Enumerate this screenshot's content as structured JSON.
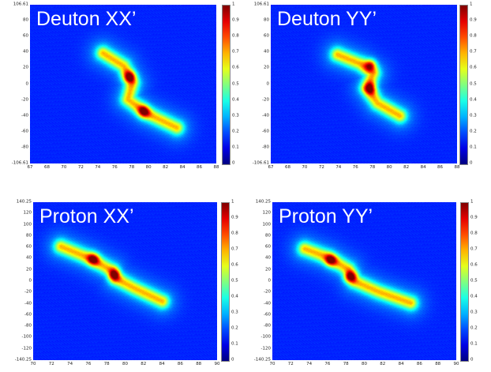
{
  "chart_data": [
    {
      "type": "heatmap",
      "title": "Deuton XX’",
      "x_ticks": [
        "67",
        "68",
        "70",
        "72",
        "74",
        "76",
        "78",
        "80",
        "82",
        "84",
        "86",
        "88"
      ],
      "y_ticks": [
        "106.61",
        "80",
        "60",
        "40",
        "20",
        "0",
        "-20",
        "-40",
        "-60",
        "-80",
        "-106.61"
      ],
      "colorbar_ticks": [
        "1",
        "0.9",
        "0.8",
        "0.7",
        "0.6",
        "0.5",
        "0.4",
        "0.3",
        "0.2",
        "0.1",
        "0"
      ],
      "xlim": [
        67,
        88
      ],
      "ylim": [
        -106.61,
        106.61
      ],
      "zlim": [
        0,
        1
      ],
      "colormap": "jet",
      "ridge": [
        [
          75.2,
          42
        ],
        [
          77.5,
          25
        ],
        [
          78.5,
          2
        ],
        [
          78.0,
          -20
        ],
        [
          80.0,
          -38
        ],
        [
          83.5,
          -58
        ]
      ],
      "core": [
        [
          78.2,
          10
        ],
        [
          79.8,
          -36
        ]
      ]
    },
    {
      "type": "heatmap",
      "title": "Deuton YY’",
      "x_ticks": [
        "67",
        "68",
        "70",
        "72",
        "74",
        "76",
        "78",
        "80",
        "82",
        "84",
        "86",
        "88"
      ],
      "y_ticks": [
        "106.61",
        "80",
        "60",
        "40",
        "20",
        "0",
        "-20",
        "-40",
        "-60",
        "-80",
        "-106.61"
      ],
      "colorbar_ticks": [
        "1",
        "0.9",
        "0.8",
        "0.7",
        "0.6",
        "0.5",
        "0.4",
        "0.3",
        "0.2",
        "0.1",
        "0"
      ],
      "xlim": [
        67,
        88
      ],
      "ylim": [
        -106.61,
        106.61
      ],
      "zlim": [
        0,
        1
      ],
      "colormap": "jet",
      "ridge": [
        [
          74.5,
          40
        ],
        [
          77.0,
          28
        ],
        [
          78.5,
          15
        ],
        [
          77.8,
          -5
        ],
        [
          79.0,
          -25
        ],
        [
          81.5,
          -42
        ]
      ],
      "core": [
        [
          78.2,
          26
        ],
        [
          78.2,
          -5
        ]
      ]
    },
    {
      "type": "heatmap",
      "title": "Proton XX’",
      "x_ticks": [
        "70",
        "72",
        "74",
        "76",
        "78",
        "80",
        "82",
        "84",
        "86",
        "88",
        "90"
      ],
      "y_ticks": [
        "140.25",
        "120",
        "100",
        "80",
        "60",
        "40",
        "20",
        "0",
        "-20",
        "-40",
        "-60",
        "-80",
        "-100",
        "-120",
        "-140.25"
      ],
      "colorbar_ticks": [
        "1",
        "0.9",
        "0.8",
        "0.7",
        "0.6",
        "0.5",
        "0.4",
        "0.3",
        "0.2",
        "0.1",
        "0"
      ],
      "xlim": [
        70,
        90
      ],
      "ylim": [
        -140.25,
        140.25
      ],
      "zlim": [
        0,
        1
      ],
      "colormap": "jet",
      "ridge": [
        [
          73.0,
          62
        ],
        [
          76.0,
          42
        ],
        [
          78.5,
          20
        ],
        [
          79.0,
          5
        ],
        [
          81.0,
          -12
        ],
        [
          84.0,
          -35
        ]
      ],
      "core": [
        [
          76.5,
          40
        ],
        [
          78.8,
          12
        ]
      ]
    },
    {
      "type": "heatmap",
      "title": "Proton YY’",
      "x_ticks": [
        "70",
        "72",
        "74",
        "76",
        "78",
        "80",
        "82",
        "84",
        "86",
        "88",
        "90"
      ],
      "y_ticks": [
        "140.25",
        "120",
        "100",
        "80",
        "60",
        "40",
        "20",
        "0",
        "-20",
        "-40",
        "-60",
        "-80",
        "-100",
        "-120",
        "-140.25"
      ],
      "colorbar_ticks": [
        "1",
        "0.9",
        "0.8",
        "0.7",
        "0.6",
        "0.5",
        "0.4",
        "0.3",
        "0.2",
        "0.1",
        "0"
      ],
      "xlim": [
        70,
        90
      ],
      "ylim": [
        -140.25,
        140.25
      ],
      "zlim": [
        0,
        1
      ],
      "colormap": "jet",
      "ridge": [
        [
          73.5,
          58
        ],
        [
          76.0,
          43
        ],
        [
          78.2,
          22
        ],
        [
          79.0,
          0
        ],
        [
          81.5,
          -18
        ],
        [
          85.0,
          -38
        ]
      ],
      "core": [
        [
          76.3,
          38
        ],
        [
          78.4,
          8
        ]
      ]
    }
  ]
}
